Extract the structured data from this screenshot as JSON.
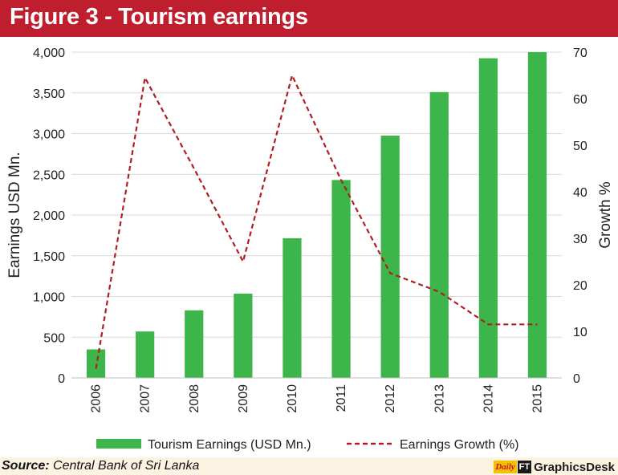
{
  "header": {
    "title": "Figure 3 - Tourism earnings"
  },
  "footer": {
    "source_label": "Source:",
    "source_text": "Central Bank of Sri Lanka",
    "brand_logo": "Daily",
    "brand_ft": "FT",
    "brand_text": "GraphicsDesk"
  },
  "colors": {
    "header_bg": "#be1e2d",
    "bar": "#3cb54a",
    "line": "#b01e23",
    "page_bg": "#fdf3e3"
  },
  "chart_data": {
    "type": "bar",
    "categories": [
      "2006",
      "2007",
      "2008",
      "2009",
      "2010",
      "2011",
      "2012",
      "2013",
      "2014",
      "2015"
    ],
    "series": [
      {
        "name": "Tourism Earnings (USD Mn.)",
        "type": "bar",
        "axis": "left",
        "values": [
          350,
          570,
          830,
          1035,
          1715,
          2430,
          2975,
          3510,
          3925,
          4000
        ]
      },
      {
        "name": "Earnings Growth (%)",
        "type": "line",
        "style": "dashed",
        "axis": "right",
        "values": [
          2,
          64.5,
          45,
          25,
          65,
          42.5,
          22.5,
          18.5,
          11.5,
          11.5
        ]
      }
    ],
    "ylabel": "Earnings USD Mn.",
    "y2label": "Growth %",
    "ylim": [
      0,
      4000
    ],
    "y2lim": [
      0,
      70
    ],
    "yticks": [
      "0",
      "500",
      "1,000",
      "1,500",
      "2,000",
      "2,500",
      "3,000",
      "3,500",
      "4,000"
    ],
    "y2ticks": [
      "0",
      "10",
      "20",
      "30",
      "40",
      "50",
      "60",
      "70"
    ],
    "grid": true,
    "legend_position": "bottom"
  }
}
